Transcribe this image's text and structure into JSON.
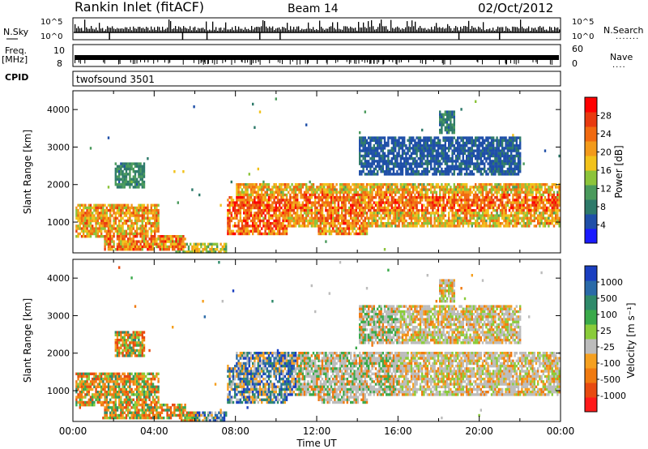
{
  "header": {
    "title": "Rankin Inlet (fitACF)",
    "beam": "Beam 14",
    "date": "02/Oct/2012"
  },
  "status_panels": {
    "nsky_label": "N.Sky",
    "nsky_ticks": [
      "10^5",
      "10^0"
    ],
    "nsearch_label": "N.Search",
    "nsearch_ticks": [
      "10^5",
      "10^0"
    ],
    "freq_label": "Freq.",
    "freq_unit": "[MHz]",
    "freq_ticks": [
      "10",
      "8"
    ],
    "nave_label": "Nave",
    "nave_ticks": [
      "60",
      "0"
    ],
    "cpid_label": "CPID",
    "cpid_value": "twofsound 3501"
  },
  "colors": {
    "power_scale": [
      "#1a1aff",
      "#1f4fa8",
      "#2e7a6a",
      "#4a9a5c",
      "#8cc43a",
      "#f2c21a",
      "#f39a1a",
      "#f16a10",
      "#e83a10",
      "#ff0000"
    ],
    "velocity_scale": [
      "#1a3fc0",
      "#2a6aa8",
      "#2f8a6a",
      "#3aaa4a",
      "#8acc3a",
      "#bcbcbc",
      "#f5a020",
      "#f07a10",
      "#e84a10",
      "#ff1a1a"
    ]
  },
  "chart_data": [
    {
      "type": "heatmap",
      "name": "power",
      "xlabel": "",
      "ylabel": "Slant Range [km]",
      "xlim": [
        0,
        24
      ],
      "ylim": [
        180,
        4500
      ],
      "yticks": [
        1000,
        2000,
        3000,
        4000
      ],
      "colorbar": {
        "label": "Power [dB]",
        "range": [
          0,
          32
        ],
        "ticks": [
          "4",
          "8",
          "12",
          "16",
          "20",
          "24",
          "28"
        ]
      }
    },
    {
      "type": "heatmap",
      "name": "velocity",
      "xlabel": "Time UT",
      "ylabel": "Slant Range [km]",
      "xlim": [
        0,
        24
      ],
      "ylim": [
        180,
        4500
      ],
      "xticks": [
        "00:00",
        "04:00",
        "08:00",
        "12:00",
        "16:00",
        "20:00",
        "00:00"
      ],
      "yticks": [
        1000,
        2000,
        3000,
        4000
      ],
      "colorbar": {
        "label": "Velocity [m s⁻¹]",
        "ticks": [
          "1000",
          "500",
          "100",
          "25",
          "-25",
          "-100",
          "-500",
          "-1000"
        ]
      }
    }
  ]
}
